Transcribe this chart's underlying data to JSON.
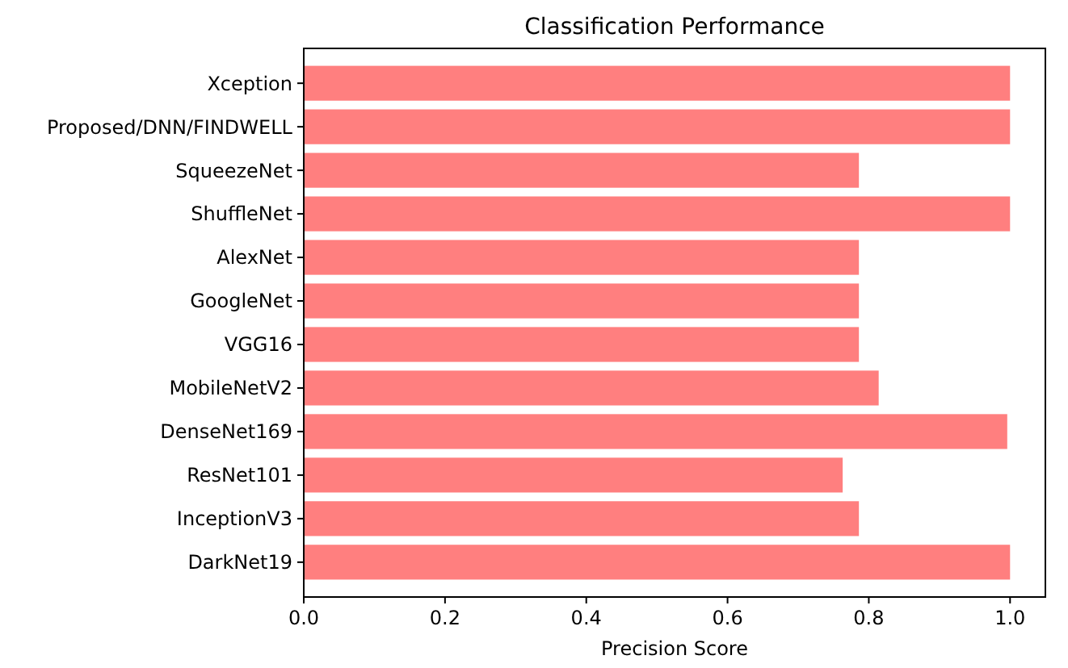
{
  "chart_data": {
    "type": "bar",
    "orientation": "horizontal",
    "title": "Classification Performance",
    "xlabel": "Precision Score",
    "categories": [
      "Xception",
      "Proposed/DNN/FINDWELL",
      "SqueezeNet",
      "ShuffleNet",
      "AlexNet",
      "GoogleNet",
      "VGG16",
      "MobileNetV2",
      "DenseNet169",
      "ResNet101",
      "InceptionV3",
      "DarkNet19"
    ],
    "values": [
      1.0,
      1.0,
      0.786,
      1.0,
      0.786,
      0.786,
      0.786,
      0.814,
      0.996,
      0.763,
      0.786,
      1.0
    ],
    "color": "#ff7f7f",
    "xlim": [
      0,
      1.05
    ],
    "xticks": [
      {
        "value": 0,
        "label": "0.0"
      },
      {
        "value": 0.2,
        "label": "0.2"
      },
      {
        "value": 0.4,
        "label": "0.4"
      },
      {
        "value": 0.6,
        "label": "0.6"
      },
      {
        "value": 0.8,
        "label": "0.8"
      },
      {
        "value": 1,
        "label": "1.0"
      }
    ],
    "grid": false
  }
}
